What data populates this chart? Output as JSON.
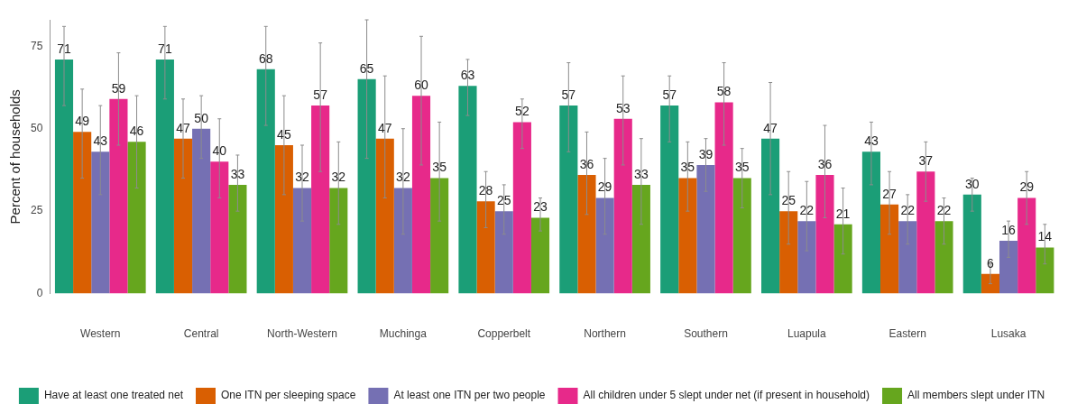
{
  "chart_data": {
    "type": "bar",
    "ylabel": "Percent of households",
    "categories": [
      "Western",
      "Central",
      "North-Western",
      "Muchinga",
      "Copperbelt",
      "Northern",
      "Southern",
      "Luapula",
      "Eastern",
      "Lusaka"
    ],
    "series": [
      {
        "name": "Have at least one treated net",
        "color": "#1b9e77",
        "values": [
          71,
          71,
          68,
          65,
          63,
          57,
          57,
          47,
          43,
          30
        ],
        "errors": [
          [
            57,
            81
          ],
          [
            59,
            81
          ],
          [
            51,
            81
          ],
          [
            41,
            83
          ],
          [
            54,
            71
          ],
          [
            43,
            70
          ],
          [
            46,
            66
          ],
          [
            30,
            64
          ],
          [
            33,
            52
          ],
          [
            25,
            35
          ]
        ]
      },
      {
        "name": "One ITN per sleeping space",
        "color": "#d95f02",
        "values": [
          49,
          47,
          45,
          47,
          28,
          36,
          35,
          25,
          27,
          6
        ],
        "errors": [
          [
            35,
            62
          ],
          [
            35,
            59
          ],
          [
            30,
            60
          ],
          [
            29,
            66
          ],
          [
            20,
            37
          ],
          [
            24,
            49
          ],
          [
            25,
            46
          ],
          [
            15,
            37
          ],
          [
            18,
            37
          ],
          [
            3,
            9
          ]
        ]
      },
      {
        "name": "At least one ITN per two people",
        "color": "#7570b3",
        "values": [
          43,
          50,
          32,
          32,
          25,
          29,
          39,
          22,
          22,
          16
        ],
        "errors": [
          [
            30,
            57
          ],
          [
            41,
            60
          ],
          [
            22,
            45
          ],
          [
            18,
            50
          ],
          [
            18,
            33
          ],
          [
            18,
            41
          ],
          [
            31,
            47
          ],
          [
            13,
            34
          ],
          [
            15,
            30
          ],
          [
            11,
            22
          ]
        ]
      },
      {
        "name": "All children under 5 slept under net (if present in household)",
        "color": "#e7298a",
        "values": [
          59,
          40,
          57,
          60,
          52,
          53,
          58,
          36,
          37,
          29
        ],
        "errors": [
          [
            45,
            73
          ],
          [
            29,
            53
          ],
          [
            37,
            76
          ],
          [
            39,
            78
          ],
          [
            44,
            59
          ],
          [
            39,
            66
          ],
          [
            45,
            70
          ],
          [
            23,
            51
          ],
          [
            28,
            46
          ],
          [
            21,
            37
          ]
        ]
      },
      {
        "name": "All members slept under ITN",
        "color": "#66a61e",
        "values": [
          46,
          33,
          32,
          35,
          23,
          33,
          35,
          21,
          22,
          14
        ],
        "errors": [
          [
            32,
            60
          ],
          [
            25,
            42
          ],
          [
            21,
            46
          ],
          [
            22,
            52
          ],
          [
            19,
            29
          ],
          [
            21,
            47
          ],
          [
            26,
            44
          ],
          [
            12,
            32
          ],
          [
            15,
            29
          ],
          [
            9,
            21
          ]
        ]
      }
    ],
    "ylim": [
      0,
      83
    ],
    "yticks": [
      0,
      25,
      50,
      75
    ],
    "grid": false,
    "legend": "bottom",
    "data_labels": true
  }
}
